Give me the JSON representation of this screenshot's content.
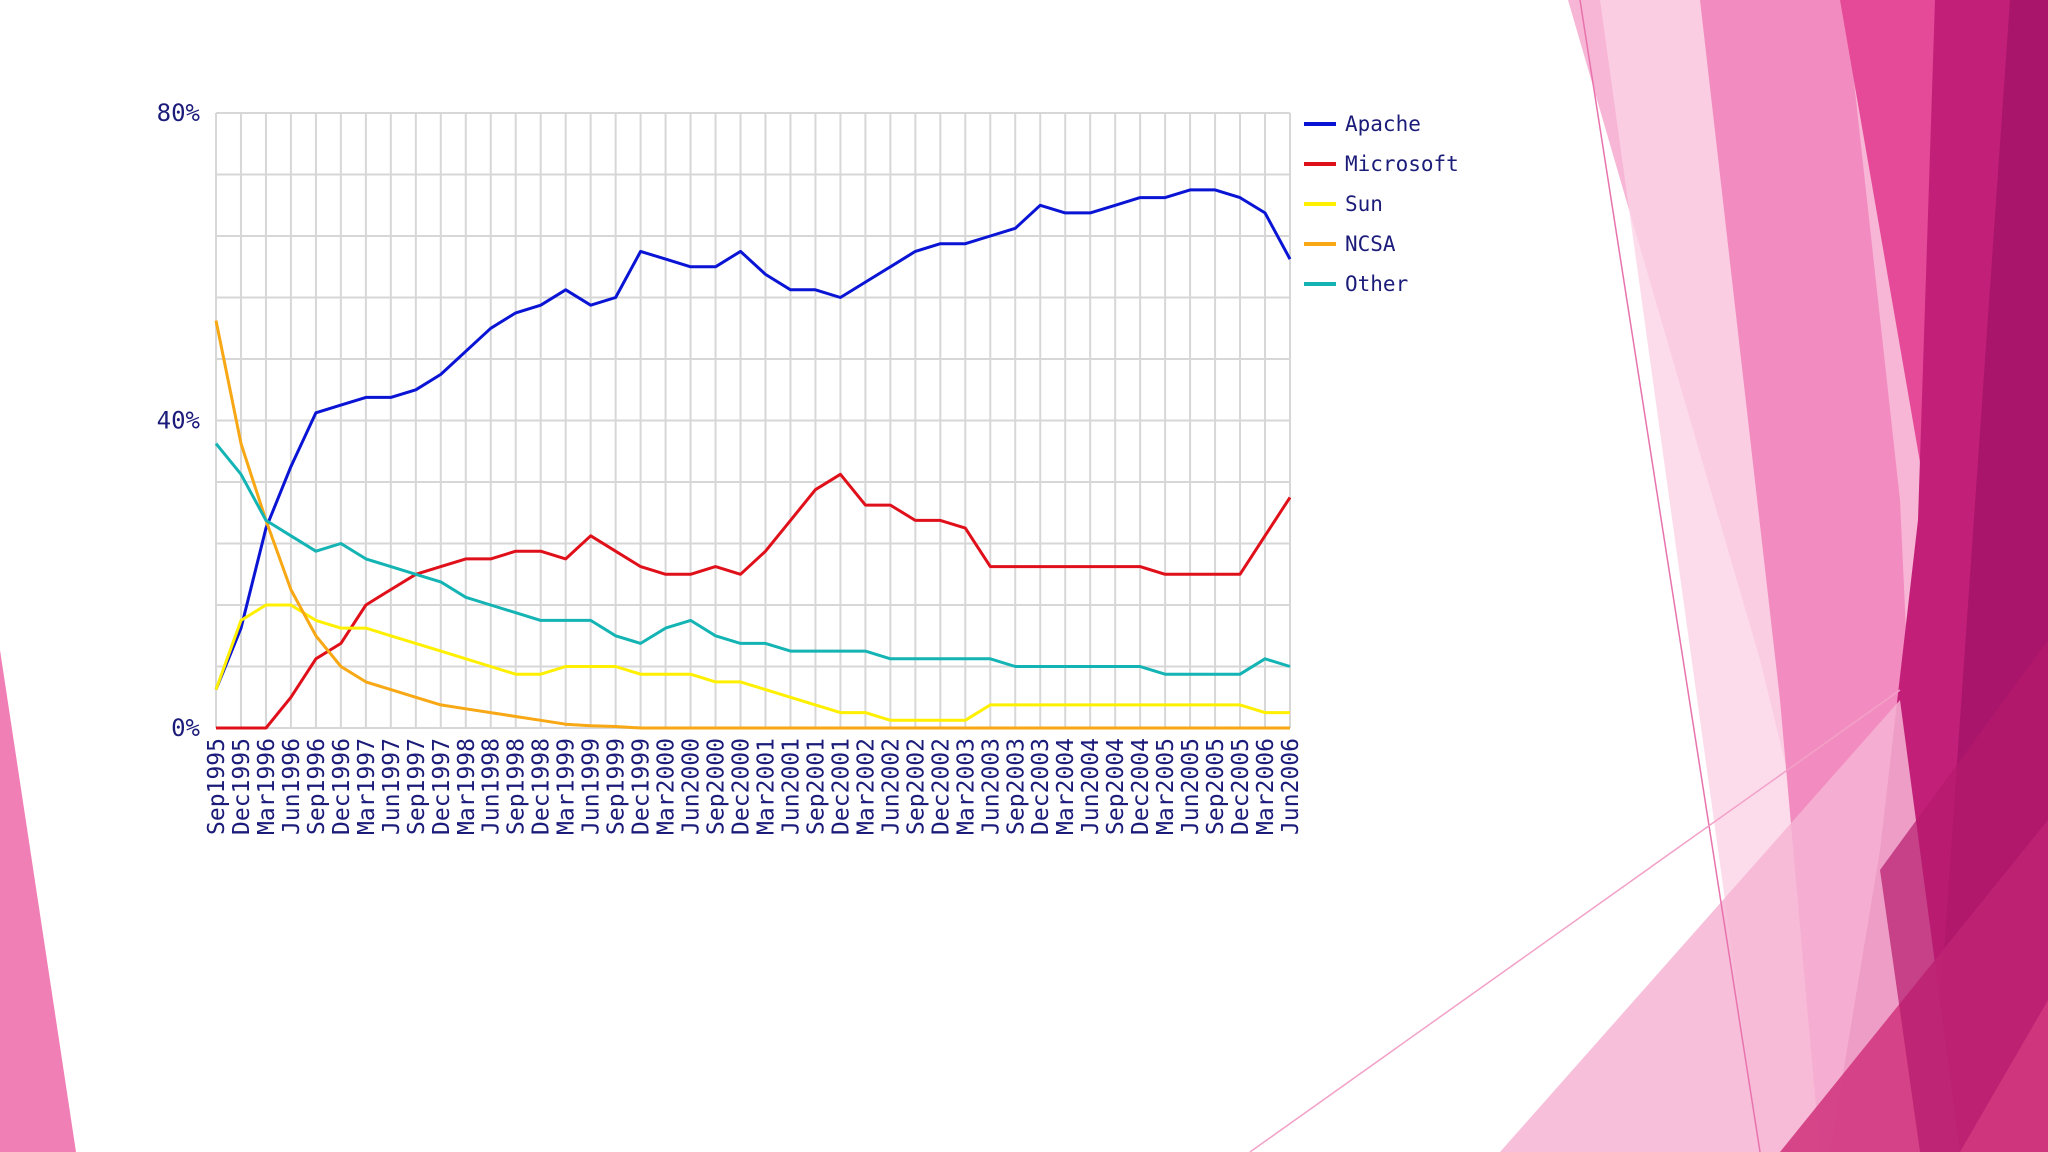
{
  "slide": {
    "background": "#ffffff",
    "accent_dark": "#b5176f",
    "accent_mid": "#e73d8f",
    "accent_light": "#f38dc0"
  },
  "chart_data": {
    "type": "line",
    "title": "",
    "xlabel": "",
    "ylabel": "",
    "ylim": [
      0,
      80
    ],
    "yticks": [
      "80%",
      "40%",
      "0%"
    ],
    "ytick_values": [
      80,
      40,
      0
    ],
    "grid": true,
    "legend_position": "right",
    "categories": [
      "Sep1995",
      "Dec1995",
      "Mar1996",
      "Jun1996",
      "Sep1996",
      "Dec1996",
      "Mar1997",
      "Jun1997",
      "Sep1997",
      "Dec1997",
      "Mar1998",
      "Jun1998",
      "Sep1998",
      "Dec1998",
      "Mar1999",
      "Jun1999",
      "Sep1999",
      "Dec1999",
      "Mar2000",
      "Jun2000",
      "Sep2000",
      "Dec2000",
      "Mar2001",
      "Jun2001",
      "Sep2001",
      "Dec2001",
      "Mar2002",
      "Jun2002",
      "Sep2002",
      "Dec2002",
      "Mar2003",
      "Jun2003",
      "Sep2003",
      "Dec2003",
      "Mar2004",
      "Jun2004",
      "Sep2004",
      "Dec2004",
      "Mar2005",
      "Jun2005",
      "Sep2005",
      "Dec2005",
      "Mar2006",
      "Jun2006"
    ],
    "series": [
      {
        "name": "Apache",
        "color": "#0a14d4",
        "values": [
          5,
          13,
          26,
          34,
          41,
          42,
          43,
          43,
          44,
          46,
          49,
          52,
          54,
          55,
          57,
          55,
          56,
          62,
          61,
          60,
          60,
          62,
          59,
          57,
          57,
          56,
          58,
          60,
          62,
          63,
          63,
          64,
          65,
          68,
          67,
          67,
          68,
          69,
          69,
          70,
          70,
          69,
          67,
          61
        ]
      },
      {
        "name": "Microsoft",
        "color": "#e0101a",
        "values": [
          0,
          0,
          0,
          4,
          9,
          11,
          16,
          18,
          20,
          21,
          22,
          22,
          23,
          23,
          22,
          25,
          23,
          21,
          20,
          20,
          21,
          20,
          23,
          27,
          31,
          33,
          29,
          29,
          27,
          27,
          26,
          21,
          21,
          21,
          21,
          21,
          21,
          21,
          20,
          20,
          20,
          20,
          25,
          30
        ]
      },
      {
        "name": "Sun",
        "color": "#ffef00",
        "values": [
          5,
          14,
          16,
          16,
          14,
          13,
          13,
          12,
          11,
          10,
          9,
          8,
          7,
          7,
          8,
          8,
          8,
          7,
          7,
          7,
          6,
          6,
          5,
          4,
          3,
          2,
          2,
          1,
          1,
          1,
          1,
          3,
          3,
          3,
          3,
          3,
          3,
          3,
          3,
          3,
          3,
          3,
          2,
          2
        ]
      },
      {
        "name": "NCSA",
        "color": "#f7a814",
        "values": [
          53,
          37,
          27,
          18,
          12,
          8,
          6,
          5,
          4,
          3,
          2.5,
          2,
          1.5,
          1,
          0.5,
          0.3,
          0.2,
          0,
          0,
          0,
          0,
          0,
          0,
          0,
          0,
          0,
          0,
          0,
          0,
          0,
          0,
          0,
          0,
          0,
          0,
          0,
          0,
          0,
          0,
          0,
          0,
          0,
          0,
          0
        ]
      },
      {
        "name": "Other",
        "color": "#14b4b4",
        "values": [
          37,
          33,
          27,
          25,
          23,
          24,
          22,
          21,
          20,
          19,
          17,
          16,
          15,
          14,
          14,
          14,
          12,
          11,
          13,
          14,
          12,
          11,
          11,
          10,
          10,
          10,
          10,
          9,
          9,
          9,
          9,
          9,
          8,
          8,
          8,
          8,
          8,
          8,
          7,
          7,
          7,
          7,
          9,
          8
        ]
      }
    ]
  }
}
